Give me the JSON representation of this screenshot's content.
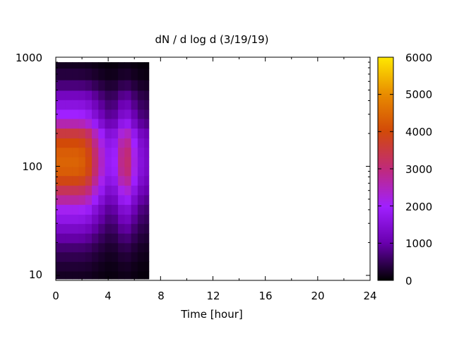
{
  "chart_data": {
    "type": "heatmap",
    "title": "dN / d log d (3/19/19)",
    "xlabel": "Time [hour]",
    "ylabel": "",
    "xlim": [
      0,
      24
    ],
    "ylim": [
      9,
      1000
    ],
    "y_scale": "log",
    "x_tick_labels": [
      "0",
      "4",
      "8",
      "12",
      "16",
      "20",
      "24"
    ],
    "y_tick_labels": [
      "10",
      "100",
      "1000"
    ],
    "colorbar": {
      "range": [
        0,
        6000
      ],
      "tick_labels": [
        "0",
        "1000",
        "2000",
        "3000",
        "4000",
        "5000",
        "6000"
      ],
      "colormap": [
        "#000000",
        "#6a00b0",
        "#a020ff",
        "#c02a7a",
        "#d24a08",
        "#e88a00",
        "#ffe800"
      ]
    },
    "data_extent": {
      "x": [
        0,
        7.1
      ],
      "y": [
        9.3,
        900
      ]
    },
    "x": [
      0,
      0.5,
      1,
      1.5,
      2,
      2.5,
      3,
      3.5,
      4,
      4.5,
      5,
      5.5,
      6,
      6.5,
      7
    ],
    "y": [
      10,
      12,
      15,
      18,
      22,
      27,
      33,
      40,
      50,
      60,
      75,
      90,
      110,
      135,
      165,
      200,
      250,
      300,
      370,
      450,
      550,
      700,
      900
    ],
    "z_profile": [
      200,
      300,
      450,
      650,
      950,
      1300,
      1700,
      2100,
      2700,
      3300,
      3900,
      4300,
      4400,
      4300,
      4000,
      3500,
      2600,
      2000,
      1600,
      1200,
      700,
      350,
      180
    ],
    "z_time_factor": [
      1.0,
      1.0,
      1.0,
      1.0,
      0.98,
      0.9,
      0.72,
      0.55,
      0.42,
      0.45,
      0.65,
      0.7,
      0.5,
      0.35,
      0.3
    ]
  }
}
